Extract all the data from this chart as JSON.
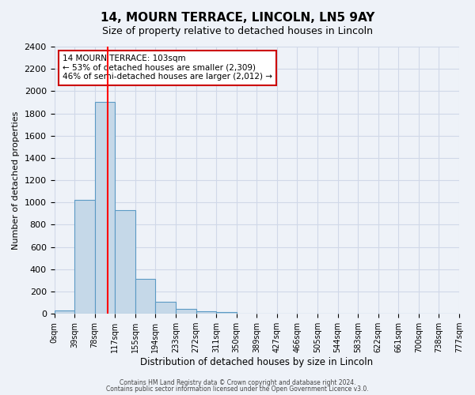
{
  "title": "14, MOURN TERRACE, LINCOLN, LN5 9AY",
  "subtitle": "Size of property relative to detached houses in Lincoln",
  "xlabel": "Distribution of detached houses by size in Lincoln",
  "ylabel": "Number of detached properties",
  "bar_values": [
    30,
    1025,
    1900,
    930,
    315,
    105,
    45,
    25,
    15,
    0,
    0,
    0,
    0,
    0,
    0,
    0,
    0,
    0,
    0,
    0
  ],
  "bin_labels": [
    "0sqm",
    "39sqm",
    "78sqm",
    "117sqm",
    "155sqm",
    "194sqm",
    "233sqm",
    "272sqm",
    "311sqm",
    "350sqm",
    "389sqm",
    "427sqm",
    "466sqm",
    "505sqm",
    "544sqm",
    "583sqm",
    "622sqm",
    "661sqm",
    "700sqm",
    "738sqm",
    "777sqm"
  ],
  "bar_color": "#c5d8e8",
  "bar_edge_color": "#5b9ac4",
  "red_line_x": 103,
  "bin_width": 39,
  "ylim": [
    0,
    2400
  ],
  "yticks": [
    0,
    200,
    400,
    600,
    800,
    1000,
    1200,
    1400,
    1600,
    1800,
    2000,
    2200,
    2400
  ],
  "annotation_title": "14 MOURN TERRACE: 103sqm",
  "annotation_line1": "← 53% of detached houses are smaller (2,309)",
  "annotation_line2": "46% of semi-detached houses are larger (2,012) →",
  "annotation_box_color": "#ffffff",
  "annotation_box_edge": "#cc0000",
  "grid_color": "#d0d8e8",
  "background_color": "#eef2f8",
  "footer_line1": "Contains HM Land Registry data © Crown copyright and database right 2024.",
  "footer_line2": "Contains public sector information licensed under the Open Government Licence v3.0."
}
